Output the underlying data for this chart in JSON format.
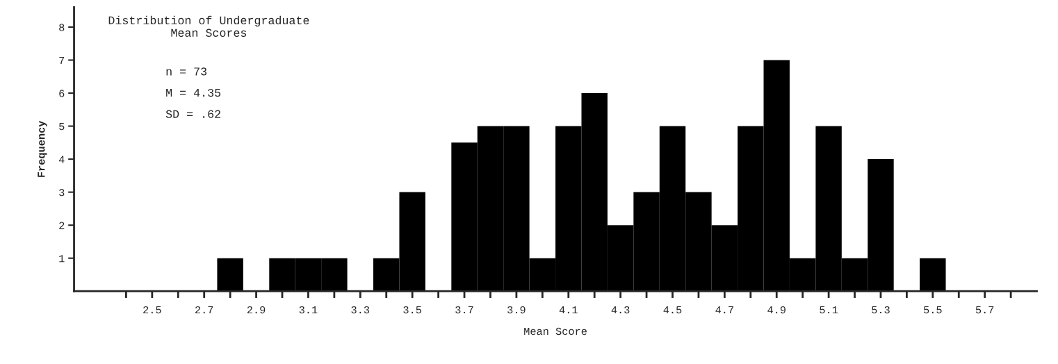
{
  "chart_data": {
    "type": "histogram",
    "title": "Distribution of Undergraduate\nMean Scores",
    "xlabel": "Mean Score",
    "ylabel": "Frequency",
    "annotations": [
      "n = 73",
      "M = 4.35",
      "SD = .62"
    ],
    "bins": [
      2.75,
      2.85,
      2.95,
      3.05,
      3.15,
      3.25,
      3.35,
      3.45,
      3.55,
      3.65,
      3.75,
      3.85,
      3.95,
      4.05,
      4.15,
      4.25,
      4.35,
      4.45,
      4.55,
      4.65,
      4.75,
      4.85,
      4.95,
      5.05,
      5.15,
      5.25,
      5.35,
      5.45,
      5.55
    ],
    "values": [
      1,
      0,
      1,
      1,
      1,
      0,
      1,
      3,
      0,
      4.5,
      5,
      5,
      1,
      5,
      6,
      2,
      3,
      5,
      3,
      2,
      5,
      7,
      1,
      5,
      1,
      4,
      0,
      1
    ],
    "color": "#000000",
    "xlim": [
      2.2,
      5.9
    ],
    "ylim": [
      0,
      8.6
    ],
    "xticks": [
      {
        "value": 2.4,
        "label": null
      },
      2.5,
      {
        "value": 2.6,
        "label": null
      },
      2.7,
      {
        "value": 2.8,
        "label": null
      },
      2.9,
      {
        "value": 3.0,
        "label": null
      },
      3.1,
      {
        "value": 3.2,
        "label": null
      },
      3.3,
      {
        "value": 3.4,
        "label": null
      },
      3.5,
      {
        "value": 3.6,
        "label": null
      },
      3.7,
      {
        "value": 3.8,
        "label": null
      },
      3.9,
      {
        "value": 4.0,
        "label": null
      },
      4.1,
      {
        "value": 4.2,
        "label": null
      },
      4.3,
      {
        "value": 4.4,
        "label": null
      },
      4.5,
      {
        "value": 4.6,
        "label": null
      },
      4.7,
      {
        "value": 4.8,
        "label": null
      },
      4.9,
      {
        "value": 5.0,
        "label": null
      },
      5.1,
      {
        "value": 5.2,
        "label": null
      },
      5.3,
      {
        "value": 5.4,
        "label": null
      },
      5.5,
      {
        "value": 5.6,
        "label": null
      },
      5.7,
      {
        "value": 5.8,
        "label": null
      }
    ],
    "yticks": [
      1,
      2,
      3,
      4,
      5,
      6,
      7,
      8
    ],
    "grid": false,
    "legend": false
  }
}
